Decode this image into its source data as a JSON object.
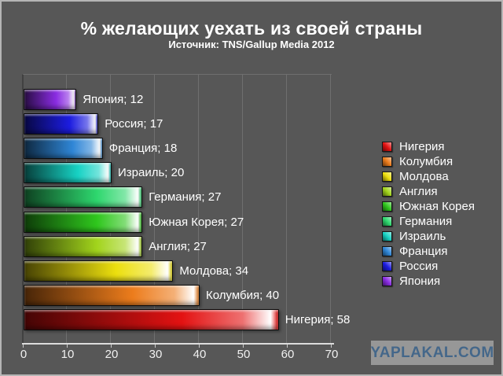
{
  "chart_data": {
    "type": "bar",
    "orientation": "horizontal",
    "title": "% желающих уехать из своей страны",
    "subtitle": "Источник: TNS/Gallup Media 2012",
    "xlim": [
      0,
      70
    ],
    "x_ticks": [
      0,
      10,
      20,
      30,
      40,
      50,
      60,
      70
    ],
    "grid": "vertical",
    "legend_position": "right",
    "label_separator": "; ",
    "bars_top_to_bottom": [
      {
        "name": "Япония",
        "value": 12,
        "color": "#8a2ce2"
      },
      {
        "name": "Россия",
        "value": 17,
        "color": "#1c1ce0"
      },
      {
        "name": "Франция",
        "value": 18,
        "color": "#2f86d6"
      },
      {
        "name": "Израиль",
        "value": 20,
        "color": "#17d2c4"
      },
      {
        "name": "Германия",
        "value": 27,
        "color": "#2ed76e"
      },
      {
        "name": "Южная Корея",
        "value": 27,
        "color": "#2fc71d"
      },
      {
        "name": "Англия",
        "value": 27,
        "color": "#a2d41c"
      },
      {
        "name": "Молдова",
        "value": 34,
        "color": "#ecdf0e"
      },
      {
        "name": "Колумбия",
        "value": 40,
        "color": "#ec7c1c"
      },
      {
        "name": "Нигерия",
        "value": 58,
        "color": "#e31212"
      }
    ],
    "legend_top_to_bottom": [
      "Нигерия",
      "Колумбия",
      "Молдова",
      "Англия",
      "Южная Корея",
      "Германия",
      "Израиль",
      "Франция",
      "Россия",
      "Япония"
    ]
  },
  "colors": {
    "background": "#575757",
    "frame_border": "#b5b5b5",
    "gridline": "#6f6f6f",
    "axis_line": "#dcdcdc",
    "text": "#ffffff"
  },
  "watermark": {
    "text": "YAPLAKAL.COM",
    "color": "#44678a",
    "bg": "#979797"
  }
}
